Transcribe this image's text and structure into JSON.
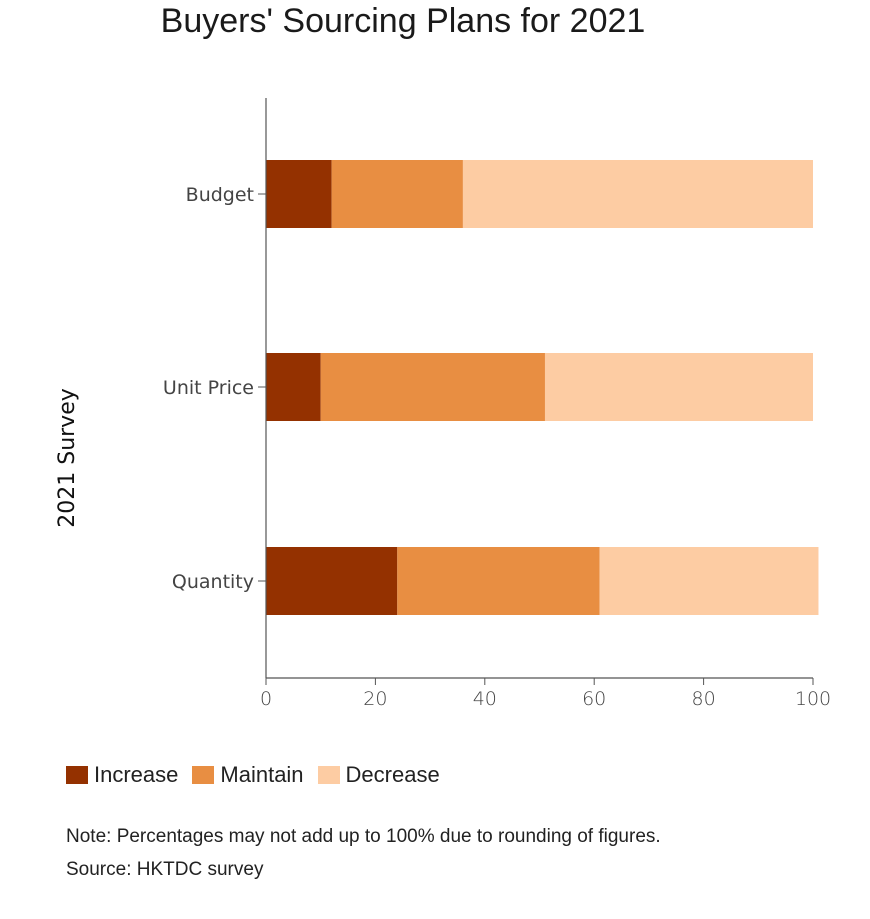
{
  "chart_data": {
    "type": "bar",
    "orientation": "horizontal",
    "stacked": true,
    "title": "Buyers' Sourcing Plans for 2021",
    "ylabel": "2021 Survey",
    "xlabel": "",
    "categories": [
      "Budget",
      "Unit Price",
      "Quantity"
    ],
    "series": [
      {
        "name": "Increase",
        "color": "#943100",
        "values": [
          12,
          10,
          24
        ]
      },
      {
        "name": "Maintain",
        "color": "#e88e42",
        "values": [
          24,
          41,
          37
        ]
      },
      {
        "name": "Decrease",
        "color": "#fdcca3",
        "values": [
          64,
          49,
          40
        ]
      }
    ],
    "xlim": [
      0,
      100
    ],
    "xticks": [
      0,
      20,
      40,
      60,
      80,
      100
    ],
    "grid": false,
    "legend_position": "bottom-left"
  },
  "footer": {
    "note": "Note: Percentages may not add up to 100% due to rounding of figures.",
    "source": "Source: HKTDC survey"
  }
}
